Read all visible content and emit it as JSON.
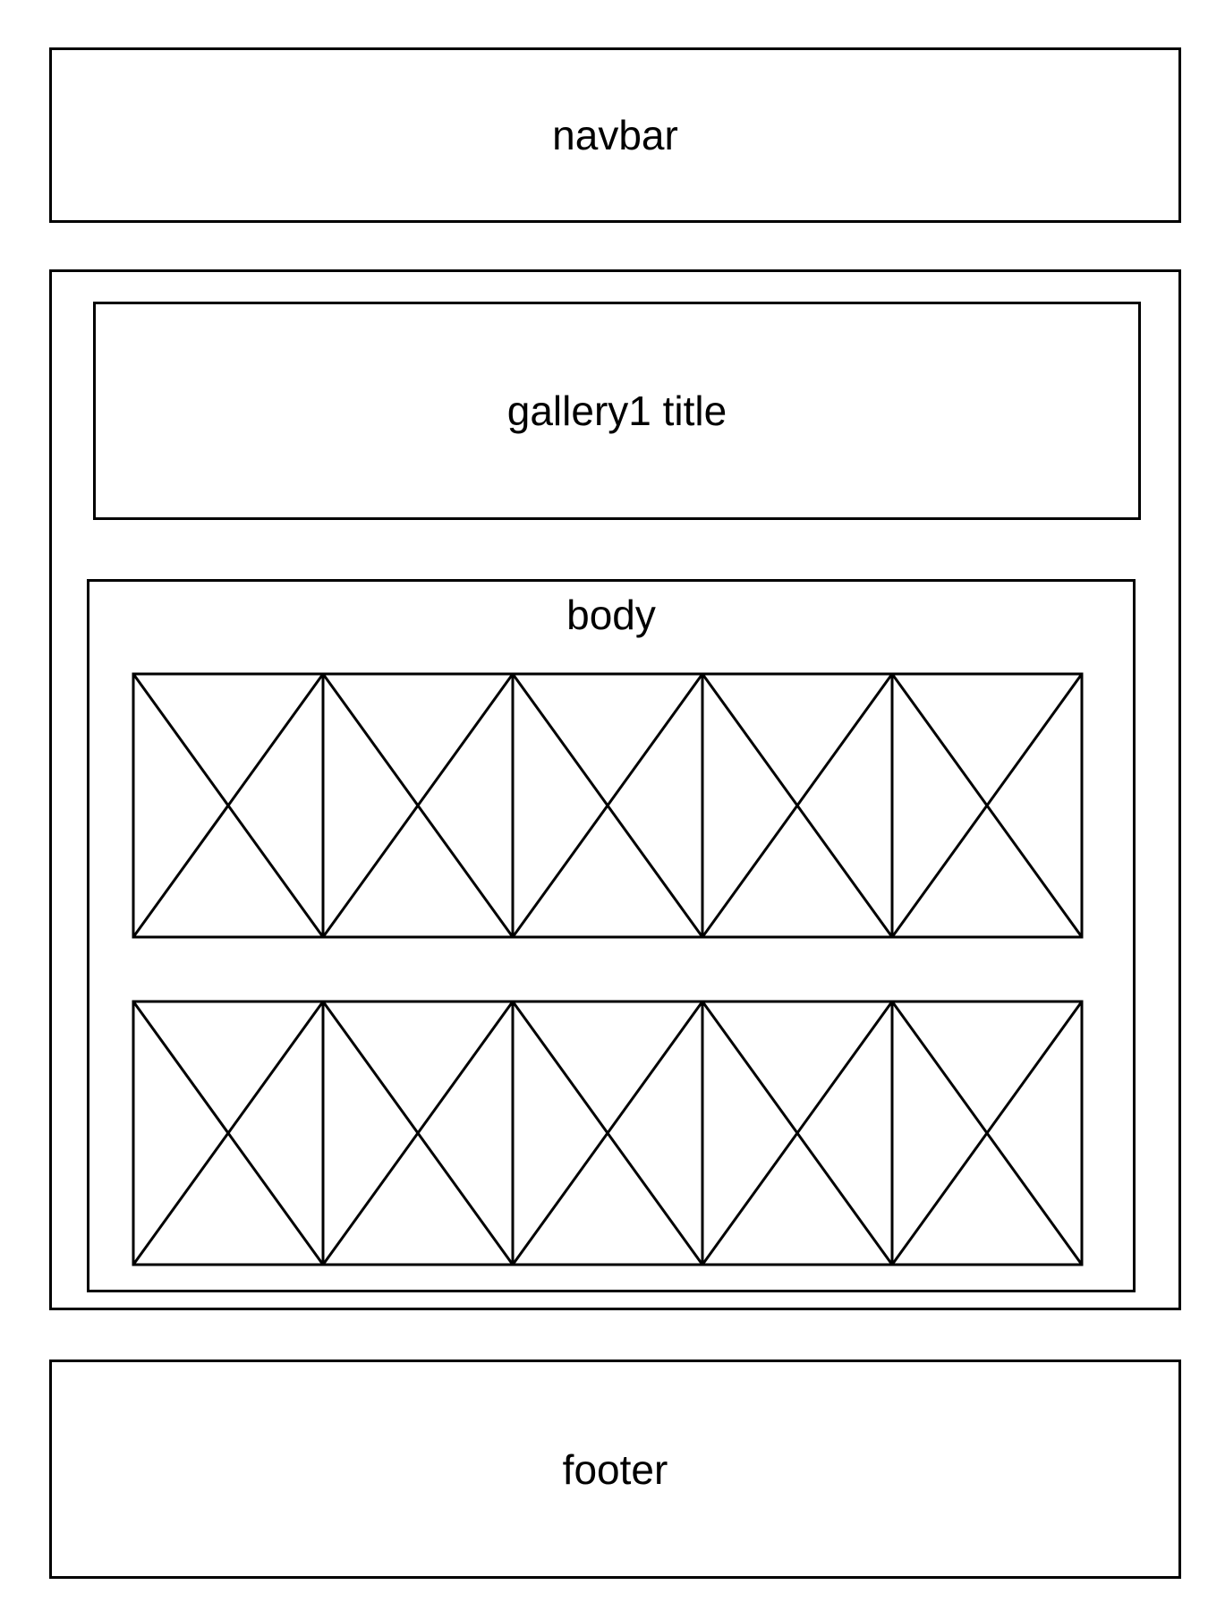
{
  "navbar": {
    "label": "navbar"
  },
  "gallery": {
    "title": {
      "label": "gallery1 title"
    },
    "body": {
      "label": "body",
      "rows": [
        {
          "placeholders": 5
        },
        {
          "placeholders": 5
        }
      ]
    }
  },
  "footer": {
    "label": "footer"
  },
  "colors": {
    "stroke": "#000000",
    "background": "#ffffff"
  },
  "icons": {
    "placeholder": "image-placeholder-icon"
  }
}
